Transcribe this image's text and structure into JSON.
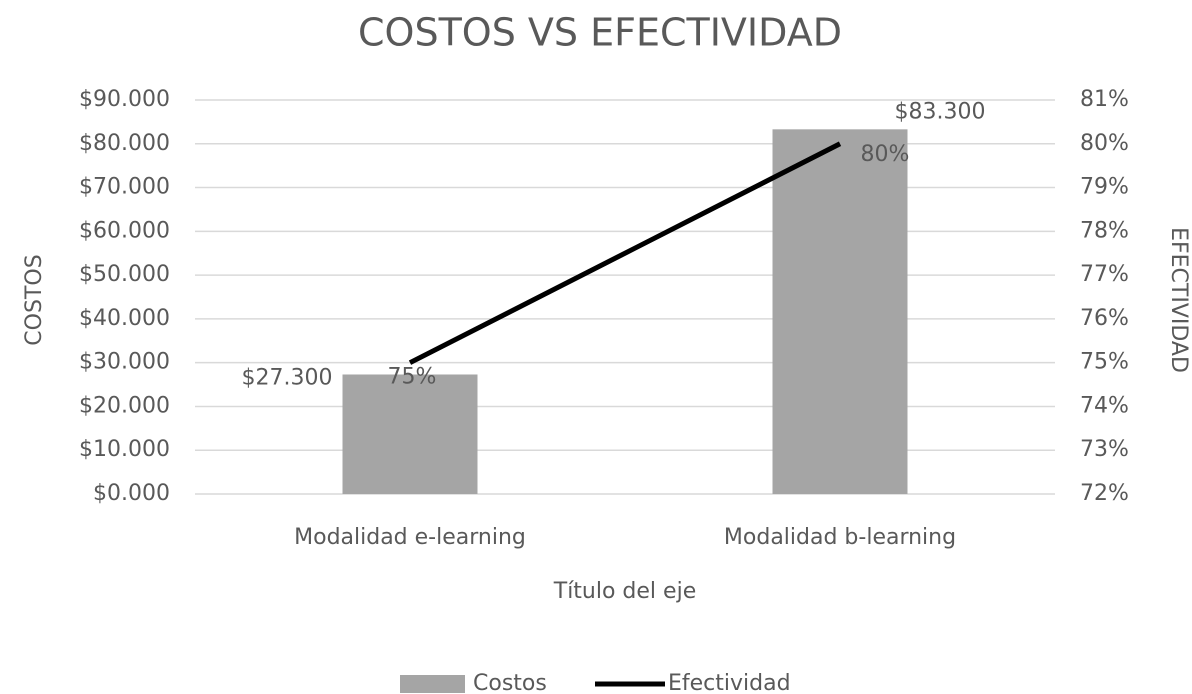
{
  "chart_data": {
    "type": "combo",
    "title": "COSTOS VS EFECTIVIDAD",
    "categories": [
      "Modalidad e-learning",
      "Modalidad b-learning"
    ],
    "series": [
      {
        "name": "Costos",
        "type": "bar",
        "color": "#a5a5a5",
        "values": [
          27300,
          83300
        ],
        "value_labels": [
          "$27.300",
          "$83.300"
        ]
      },
      {
        "name": "Efectividad",
        "type": "line",
        "axis": "y2",
        "color": "#000000",
        "values": [
          75,
          80
        ],
        "value_labels": [
          "75%",
          "80%"
        ]
      }
    ],
    "ylabel": "COSTOS",
    "y2label": "EFECTIVIDAD",
    "xlabel": "Título del eje",
    "ylim": [
      0,
      90000
    ],
    "yticks": [
      {
        "value": 0,
        "label": "$0.000"
      },
      {
        "value": 10000,
        "label": "$10.000"
      },
      {
        "value": 20000,
        "label": "$20.000"
      },
      {
        "value": 30000,
        "label": "$30.000"
      },
      {
        "value": 40000,
        "label": "$40.000"
      },
      {
        "value": 50000,
        "label": "$50.000"
      },
      {
        "value": 60000,
        "label": "$60.000"
      },
      {
        "value": 70000,
        "label": "$70.000"
      },
      {
        "value": 80000,
        "label": "$80.000"
      },
      {
        "value": 90000,
        "label": "$90.000"
      }
    ],
    "y2lim": [
      72,
      81
    ],
    "y2ticks": [
      {
        "value": 72,
        "label": "72%"
      },
      {
        "value": 73,
        "label": "73%"
      },
      {
        "value": 74,
        "label": "74%"
      },
      {
        "value": 75,
        "label": "75%"
      },
      {
        "value": 76,
        "label": "76%"
      },
      {
        "value": 77,
        "label": "77%"
      },
      {
        "value": 78,
        "label": "78%"
      },
      {
        "value": 79,
        "label": "79%"
      },
      {
        "value": 80,
        "label": "80%"
      },
      {
        "value": 81,
        "label": "81%"
      }
    ],
    "grid": true,
    "legend": "bottom"
  }
}
